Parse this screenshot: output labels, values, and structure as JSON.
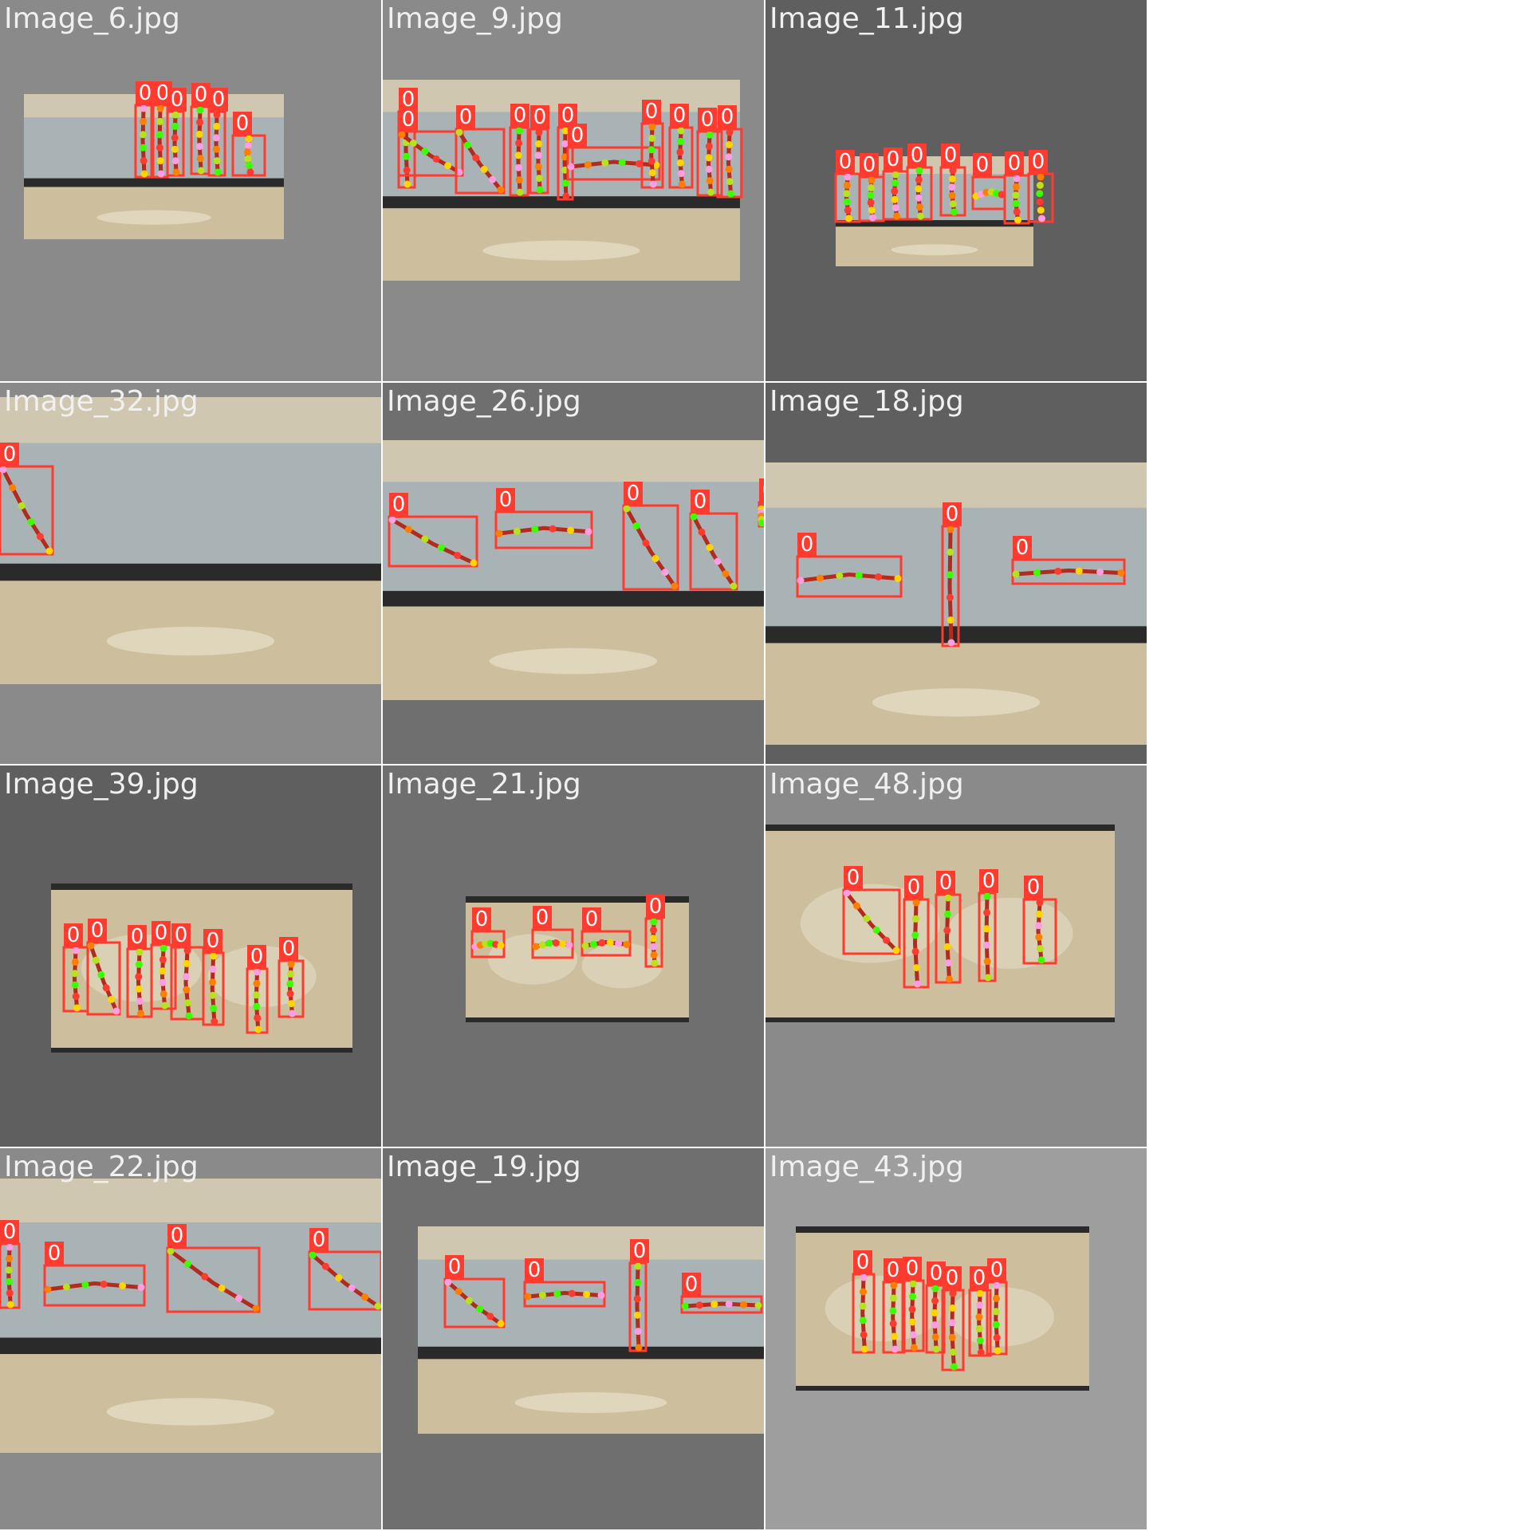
{
  "grid": {
    "columns": 3,
    "rows": 4,
    "tiles": [
      {
        "name": "Image_6.jpg"
      },
      {
        "name": "Image_9.jpg"
      },
      {
        "name": "Image_11.jpg"
      },
      {
        "name": "Image_32.jpg"
      },
      {
        "name": "Image_26.jpg"
      },
      {
        "name": "Image_18.jpg"
      },
      {
        "name": "Image_39.jpg"
      },
      {
        "name": "Image_21.jpg"
      },
      {
        "name": "Image_48.jpg"
      },
      {
        "name": "Image_22.jpg"
      },
      {
        "name": "Image_19.jpg"
      },
      {
        "name": "Image_43.jpg"
      }
    ]
  },
  "detections": {
    "class_label": "0",
    "box_color": "#ff3b30",
    "keypoint_colors": [
      "#ff9de2",
      "#ff8000",
      "#b7e21d",
      "#3cff00",
      "#ff3b30",
      "#ffd500"
    ]
  },
  "colors": {
    "tile_backgrounds": [
      "#8a8a8a",
      "#8a8a8a",
      "#5f5f5f",
      "#8a8a8a",
      "#6f6f6f",
      "#5f5f5f",
      "#5f5f5f",
      "#6f6f6f",
      "#8a8a8a",
      "#8a8a8a",
      "#6f6f6f",
      "#9e9e9e"
    ],
    "belt": "#a9b3b6",
    "rail": "#2a2a2a",
    "table": "#cdbf9e",
    "wall": "#cfc7b0"
  }
}
